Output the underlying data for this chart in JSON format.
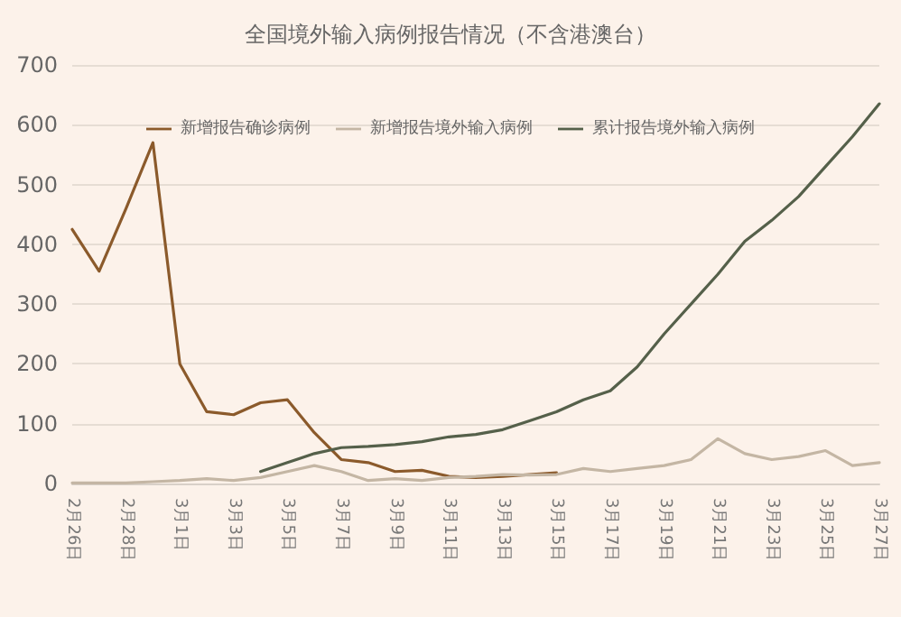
{
  "chart_data": {
    "type": "line",
    "title": "全国境外输入病例报告情况（不含港澳台）",
    "categories": [
      "2月26日",
      null,
      "2月28日",
      null,
      "3月1日",
      null,
      "3月3日",
      null,
      "3月5日",
      null,
      "3月7日",
      null,
      "3月9日",
      null,
      "3月11日",
      null,
      "3月13日",
      null,
      "3月15日",
      null,
      "3月17日",
      null,
      "3月19日",
      null,
      "3月21日",
      null,
      "3月23日",
      null,
      "3月25日",
      null,
      "3月27日"
    ],
    "series": [
      {
        "name": "新增报告确诊病例",
        "color": "#8b5a2b",
        "values": [
          425,
          355,
          460,
          570,
          200,
          120,
          115,
          135,
          140,
          85,
          40,
          35,
          20,
          22,
          12,
          10,
          12,
          15,
          18,
          null,
          null,
          null,
          null,
          null,
          null,
          null,
          null,
          null,
          null,
          null,
          null
        ]
      },
      {
        "name": "新增报告境外输入病例",
        "color": "#c4b6a4",
        "values": [
          1,
          1,
          1,
          3,
          5,
          8,
          5,
          10,
          20,
          30,
          20,
          5,
          8,
          5,
          10,
          12,
          15,
          14,
          15,
          25,
          20,
          25,
          30,
          40,
          75,
          50,
          40,
          45,
          55,
          30,
          35
        ]
      },
      {
        "name": "累计报告境外输入病例",
        "color": "#55604a",
        "values": [
          null,
          null,
          null,
          null,
          null,
          null,
          null,
          20,
          35,
          50,
          60,
          62,
          65,
          70,
          78,
          82,
          90,
          105,
          120,
          140,
          155,
          195,
          250,
          300,
          350,
          405,
          440,
          480,
          530,
          580,
          635
        ]
      }
    ],
    "ylim": [
      0,
      700
    ],
    "yticks": [
      0,
      100,
      200,
      300,
      400,
      500,
      600,
      700
    ],
    "grid": "y",
    "legend": "top",
    "marker": "none",
    "line_style": "solid"
  }
}
